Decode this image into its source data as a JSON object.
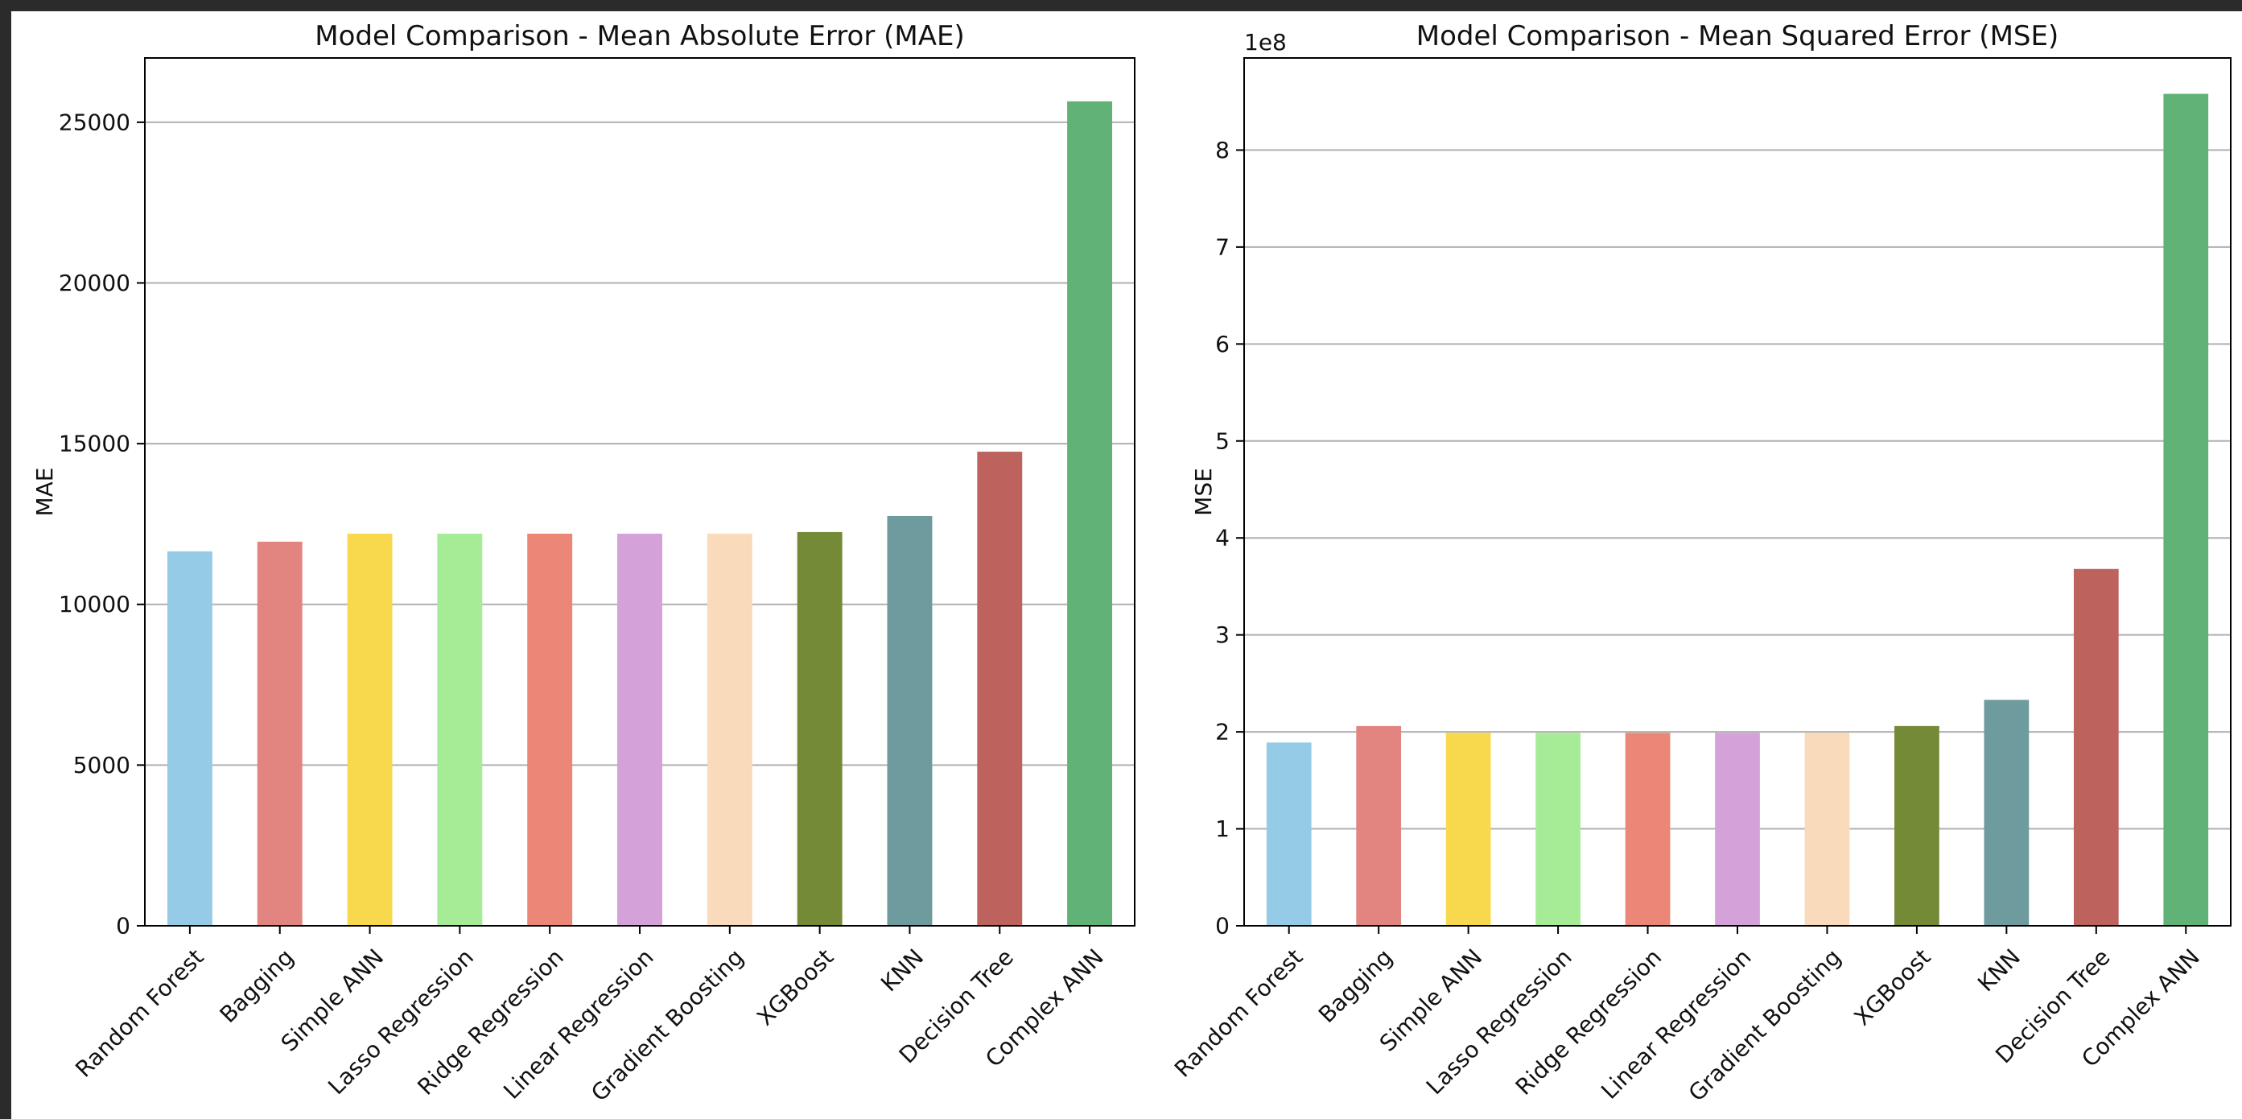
{
  "chart_data": [
    {
      "type": "bar",
      "title": "Model Comparison - Mean Absolute Error (MAE)",
      "xlabel": "",
      "ylabel": "MAE",
      "ylim": [
        0,
        27000
      ],
      "yticks": [
        0,
        5000,
        10000,
        15000,
        20000,
        25000
      ],
      "ytick_labels": [
        "0",
        "5000",
        "10000",
        "15000",
        "20000",
        "25000"
      ],
      "offset_text": "",
      "grid": "horizontal",
      "categories": [
        "Random Forest",
        "Bagging",
        "Simple ANN",
        "Lasso Regression",
        "Ridge Regression",
        "Linear Regression",
        "Gradient Boosting",
        "XGBoost",
        "KNN",
        "Decision Tree",
        "Complex ANN"
      ],
      "values": [
        11650,
        11950,
        12200,
        12200,
        12200,
        12200,
        12200,
        12250,
        12750,
        14750,
        25650
      ],
      "colors": [
        "#95cbe6",
        "#e28580",
        "#f8d94d",
        "#a6ec96",
        "#ec8677",
        "#d4a1d8",
        "#f9dabb",
        "#748a37",
        "#6d9b9e",
        "#bd625d",
        "#60b277"
      ]
    },
    {
      "type": "bar",
      "title": "Model Comparison - Mean Squared Error (MSE)",
      "xlabel": "",
      "ylabel": "MSE",
      "ylim": [
        0,
        8.95
      ],
      "yticks": [
        0,
        1,
        2,
        3,
        4,
        5,
        6,
        7,
        8
      ],
      "ytick_labels": [
        "0",
        "1",
        "2",
        "3",
        "4",
        "5",
        "6",
        "7",
        "8"
      ],
      "offset_text": "1e8",
      "grid": "horizontal",
      "categories": [
        "Random Forest",
        "Bagging",
        "Simple ANN",
        "Lasso Regression",
        "Ridge Regression",
        "Linear Regression",
        "Gradient Boosting",
        "XGBoost",
        "KNN",
        "Decision Tree",
        "Complex ANN"
      ],
      "values": [
        1.89,
        2.06,
        1.99,
        1.99,
        1.99,
        1.99,
        1.99,
        2.06,
        2.33,
        3.68,
        8.58
      ],
      "colors": [
        "#95cbe6",
        "#e28580",
        "#f8d94d",
        "#a6ec96",
        "#ec8677",
        "#d4a1d8",
        "#f9dabb",
        "#748a37",
        "#6d9b9e",
        "#bd625d",
        "#60b277"
      ]
    }
  ]
}
